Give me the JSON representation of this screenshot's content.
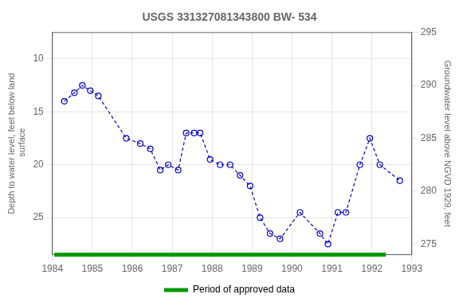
{
  "chart_data": {
    "type": "line",
    "title": "USGS 331327081343800 BW- 534",
    "ylabel": "Depth to water level, feet below land\n surface",
    "y2label": "Groundwater level above NGVD 1929, feet",
    "x": [
      1984.3,
      1984.55,
      1984.75,
      1984.95,
      1985.15,
      1985.85,
      1986.2,
      1986.45,
      1986.7,
      1986.9,
      1987.15,
      1987.35,
      1987.55,
      1987.7,
      1987.95,
      1988.2,
      1988.45,
      1988.7,
      1988.95,
      1989.2,
      1989.45,
      1989.7,
      1990.2,
      1990.7,
      1990.9,
      1991.15,
      1991.35,
      1991.7,
      1991.95,
      1992.2,
      1992.7
    ],
    "series": [
      {
        "color": "#0000cc",
        "line_style": "dashed",
        "marker": "circle",
        "values": [
          14.0,
          13.2,
          12.5,
          13.0,
          13.5,
          17.5,
          18.0,
          18.5,
          20.5,
          20.0,
          20.5,
          17.0,
          17.0,
          17.0,
          19.5,
          20.0,
          20.0,
          21.0,
          22.0,
          25.0,
          26.5,
          27.0,
          24.5,
          26.5,
          27.5,
          24.5,
          24.5,
          20.0,
          17.5,
          20.0,
          21.5
        ]
      }
    ],
    "xlim": [
      1984.0,
      1993.0
    ],
    "xticks": [
      1984,
      1985,
      1986,
      1987,
      1988,
      1989,
      1990,
      1991,
      1992,
      1993
    ],
    "ylim": [
      28.5,
      7.5
    ],
    "yticks": [
      10,
      15,
      20,
      25
    ],
    "y2lim": [
      274,
      295
    ],
    "y2ticks": [
      275,
      280,
      285,
      290,
      295
    ],
    "annotations": [
      {
        "text": "Period of approved data",
        "x": [
          1984.05,
          1992.35
        ],
        "color": "#009900"
      }
    ],
    "grid": true,
    "legend": "bottom"
  }
}
